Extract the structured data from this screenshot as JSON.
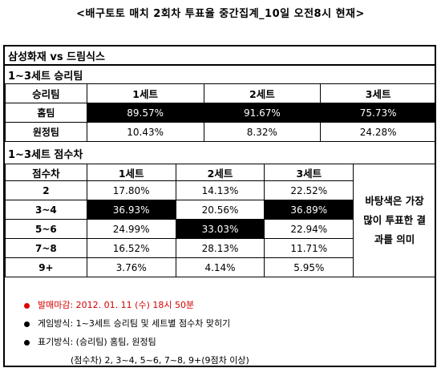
{
  "title": "<배구토토 매치 2회차 투표율 중간집계_10일 오전8시 현재>",
  "match": "삼성화재 vs 드림식스",
  "section1": {
    "heading": "1~3세트 승리팀",
    "header": [
      "승리팀",
      "1세트",
      "2세트",
      "3세트"
    ],
    "rows": [
      {
        "label": "홈팀",
        "values": [
          "89.57%",
          "91.67%",
          "75.73%"
        ],
        "highlight": [
          true,
          true,
          true
        ]
      },
      {
        "label": "원정팀",
        "values": [
          "10.43%",
          "8.32%",
          "24.28%"
        ],
        "highlight": [
          false,
          false,
          false
        ]
      }
    ]
  },
  "section2": {
    "heading": "1~3세트 점수차",
    "header": [
      "점수차",
      "1세트",
      "2세트",
      "3세트"
    ],
    "rows": [
      {
        "label": "2",
        "values": [
          "17.80%",
          "14.13%",
          "22.52%"
        ],
        "highlight": [
          false,
          false,
          false
        ]
      },
      {
        "label": "3~4",
        "values": [
          "36.93%",
          "20.56%",
          "36.89%"
        ],
        "highlight": [
          true,
          false,
          true
        ]
      },
      {
        "label": "5~6",
        "values": [
          "24.99%",
          "33.03%",
          "22.94%"
        ],
        "highlight": [
          false,
          true,
          false
        ]
      },
      {
        "label": "7~8",
        "values": [
          "16.52%",
          "28.13%",
          "11.71%"
        ],
        "highlight": [
          false,
          false,
          false
        ]
      },
      {
        "label": "9+",
        "values": [
          "3.76%",
          "4.14%",
          "5.95%"
        ],
        "highlight": [
          false,
          false,
          false
        ]
      }
    ],
    "note_lines": [
      "바탕색은 가장",
      "많이 투표한 결",
      "과를 의미"
    ]
  },
  "info": {
    "deadline": "발매마감: 2012. 01. 11 (수) 18시 50분",
    "method": "게임방식: 1~3세트 승리팀 및 세트별 점수차 맞히기",
    "notation": "표기방식: (승리팀) 홈팀, 원정팀",
    "notation2": "(점수차) 2, 3~4, 5~6, 7~8, 9+(9점차 이상)"
  },
  "colors": {
    "highlight_bg": "#000000",
    "highlight_text": "#ffffff",
    "deadline": "#d40000"
  }
}
